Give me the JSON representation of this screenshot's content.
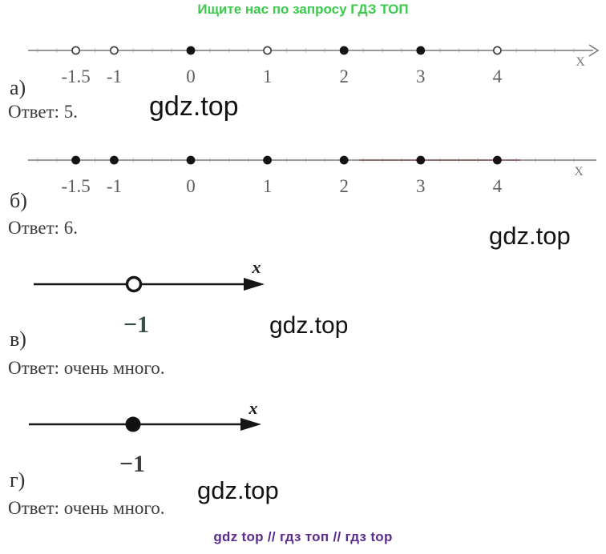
{
  "header": {
    "text": "Ищите нас по запросу ГДЗ ТОП",
    "color": "#3cc94c"
  },
  "footer": {
    "text": "gdz top  //  гдз топ  //  гдз top",
    "color": "#5b2b8f"
  },
  "watermark_text": "gdz.top",
  "colors": {
    "header_green": "#3cc94c",
    "footer_purple": "#5b2b8f",
    "line_gray": "#8b8b8b",
    "point_black": "#141414",
    "red_tint": "#8a4040"
  },
  "parts": [
    {
      "label": "а)",
      "answer": "Ответ: 5."
    },
    {
      "label": "б)",
      "answer": "Ответ: 6."
    },
    {
      "label": "в)",
      "answer": "Ответ: очень много."
    },
    {
      "label": "г)",
      "answer": "Ответ: очень много."
    }
  ],
  "number_lines": [
    {
      "axis_label": "X",
      "tick_labels": [
        {
          "v": -1.5,
          "t": "-1.5"
        },
        {
          "v": -1,
          "t": "-1"
        },
        {
          "v": 0,
          "t": "0"
        },
        {
          "v": 1,
          "t": "1"
        },
        {
          "v": 2,
          "t": "2"
        },
        {
          "v": 3,
          "t": "3"
        },
        {
          "v": 4,
          "t": "4"
        }
      ],
      "points": [
        {
          "v": -1.5,
          "filled": false
        },
        {
          "v": -1,
          "filled": false
        },
        {
          "v": 0,
          "filled": true
        },
        {
          "v": 1,
          "filled": false
        },
        {
          "v": 2,
          "filled": true
        },
        {
          "v": 3,
          "filled": true
        },
        {
          "v": 4,
          "filled": false
        }
      ],
      "red_segment": null
    },
    {
      "axis_label": "X",
      "tick_labels": [
        {
          "v": -1.5,
          "t": "-1.5"
        },
        {
          "v": -1,
          "t": "-1"
        },
        {
          "v": 0,
          "t": "0"
        },
        {
          "v": 1,
          "t": "1"
        },
        {
          "v": 2,
          "t": "2"
        },
        {
          "v": 3,
          "t": "3"
        },
        {
          "v": 4,
          "t": "4"
        }
      ],
      "points": [
        {
          "v": -1.5,
          "filled": true
        },
        {
          "v": -1,
          "filled": true
        },
        {
          "v": 0,
          "filled": true
        },
        {
          "v": 1,
          "filled": true
        },
        {
          "v": 2,
          "filled": true
        },
        {
          "v": 3,
          "filled": true
        },
        {
          "v": 4,
          "filled": true
        }
      ],
      "red_segment": [
        2.2,
        4.3
      ]
    }
  ],
  "rays": [
    {
      "axis_label": "x",
      "point_label": "−1",
      "filled": false
    },
    {
      "axis_label": "x",
      "point_label": "−1",
      "filled": true
    }
  ]
}
